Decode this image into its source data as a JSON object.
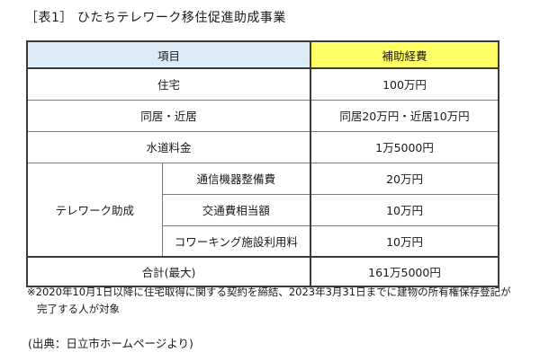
{
  "title": "［表1］ ひたちテレワーク移住促進助成事業",
  "table": {
    "headers": {
      "item": "項目",
      "cost": "補助経費"
    },
    "rows": [
      {
        "item": "住宅",
        "cost": "100万円"
      },
      {
        "item": "同居・近居",
        "cost": "同居20万円・近居10万円"
      },
      {
        "item": "水道料金",
        "cost": "1万5000円"
      }
    ],
    "telework": {
      "group_label": "テレワーク助成",
      "subrows": [
        {
          "item": "通信機器整備費",
          "cost": "20万円"
        },
        {
          "item": "交通費相当額",
          "cost": "10万円"
        },
        {
          "item": "コワーキング施設利用料",
          "cost": "10万円"
        }
      ]
    },
    "total": {
      "item": "合計(最大)",
      "cost": "161万5000円"
    }
  },
  "notes": [
    "※2020年10月1日以降に住宅取得に関する契約を締結、2023年3月31日までに建物の所有権保存登記が",
    "完了する人が対象"
  ],
  "source": "(出典：日立市ホームページより)",
  "colors": {
    "header_item_bg": "#ddebf7",
    "header_cost_bg": "#ffff66"
  }
}
